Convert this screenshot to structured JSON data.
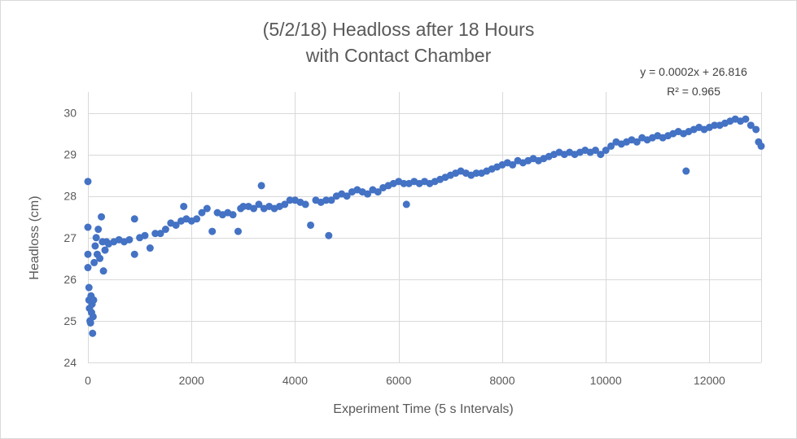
{
  "chart_data": {
    "type": "scatter",
    "title_line1": "(5/2/18) Headloss after 18 Hours",
    "title_line2": "with Contact Chamber",
    "xlabel": "Experiment Time (5 s Intervals)",
    "ylabel": "Headloss (cm)",
    "xlim": [
      0,
      13000
    ],
    "ylim": [
      24,
      30.5
    ],
    "x_ticks": [
      0,
      2000,
      4000,
      6000,
      8000,
      10000,
      12000
    ],
    "x_tick_labels": [
      "0",
      "2000",
      "4000",
      "6000",
      "8000",
      "10000",
      "12000"
    ],
    "y_ticks": [
      24,
      25,
      26,
      27,
      28,
      29,
      30
    ],
    "y_tick_labels": [
      "24",
      "25",
      "26",
      "27",
      "28",
      "29",
      "30"
    ],
    "grid": true,
    "marker_color": "#4472C4",
    "trendline_equation": "y = 0.0002x + 26.816",
    "trendline_r2": "R² = 0.965",
    "series": [
      {
        "points": [
          [
            0,
            28.35
          ],
          [
            0,
            27.25
          ],
          [
            0,
            26.6
          ],
          [
            0,
            26.28
          ],
          [
            20,
            25.8
          ],
          [
            20,
            25.5
          ],
          [
            30,
            25.3
          ],
          [
            40,
            25.0
          ],
          [
            50,
            24.95
          ],
          [
            60,
            25.6
          ],
          [
            70,
            25.2
          ],
          [
            80,
            25.4
          ],
          [
            90,
            24.7
          ],
          [
            100,
            25.1
          ],
          [
            110,
            25.5
          ],
          [
            120,
            26.4
          ],
          [
            140,
            26.8
          ],
          [
            160,
            27.0
          ],
          [
            180,
            26.6
          ],
          [
            200,
            27.2
          ],
          [
            230,
            26.5
          ],
          [
            260,
            27.5
          ],
          [
            280,
            26.9
          ],
          [
            300,
            26.2
          ],
          [
            330,
            26.7
          ],
          [
            360,
            26.9
          ],
          [
            400,
            26.85
          ],
          [
            500,
            26.9
          ],
          [
            600,
            26.95
          ],
          [
            700,
            26.9
          ],
          [
            800,
            26.95
          ],
          [
            900,
            27.45
          ],
          [
            900,
            26.6
          ],
          [
            1000,
            27.0
          ],
          [
            1100,
            27.05
          ],
          [
            1200,
            26.75
          ],
          [
            1300,
            27.1
          ],
          [
            1400,
            27.1
          ],
          [
            1500,
            27.2
          ],
          [
            1600,
            27.35
          ],
          [
            1700,
            27.3
          ],
          [
            1800,
            27.4
          ],
          [
            1850,
            27.75
          ],
          [
            1900,
            27.45
          ],
          [
            2000,
            27.4
          ],
          [
            2100,
            27.45
          ],
          [
            2200,
            27.6
          ],
          [
            2300,
            27.7
          ],
          [
            2400,
            27.15
          ],
          [
            2500,
            27.6
          ],
          [
            2600,
            27.55
          ],
          [
            2700,
            27.6
          ],
          [
            2800,
            27.55
          ],
          [
            2900,
            27.15
          ],
          [
            2950,
            27.7
          ],
          [
            3000,
            27.75
          ],
          [
            3100,
            27.75
          ],
          [
            3200,
            27.7
          ],
          [
            3300,
            27.8
          ],
          [
            3350,
            28.25
          ],
          [
            3400,
            27.7
          ],
          [
            3500,
            27.75
          ],
          [
            3600,
            27.7
          ],
          [
            3700,
            27.75
          ],
          [
            3800,
            27.8
          ],
          [
            3900,
            27.9
          ],
          [
            4000,
            27.9
          ],
          [
            4100,
            27.85
          ],
          [
            4200,
            27.8
          ],
          [
            4300,
            27.3
          ],
          [
            4400,
            27.9
          ],
          [
            4500,
            27.85
          ],
          [
            4600,
            27.9
          ],
          [
            4650,
            27.05
          ],
          [
            4700,
            27.9
          ],
          [
            4800,
            28.0
          ],
          [
            4900,
            28.05
          ],
          [
            5000,
            28.0
          ],
          [
            5100,
            28.1
          ],
          [
            5200,
            28.15
          ],
          [
            5300,
            28.1
          ],
          [
            5400,
            28.05
          ],
          [
            5500,
            28.15
          ],
          [
            5600,
            28.1
          ],
          [
            5700,
            28.2
          ],
          [
            5800,
            28.25
          ],
          [
            5900,
            28.3
          ],
          [
            6000,
            28.35
          ],
          [
            6100,
            28.3
          ],
          [
            6150,
            27.8
          ],
          [
            6200,
            28.3
          ],
          [
            6300,
            28.35
          ],
          [
            6400,
            28.3
          ],
          [
            6500,
            28.35
          ],
          [
            6600,
            28.3
          ],
          [
            6700,
            28.35
          ],
          [
            6800,
            28.4
          ],
          [
            6900,
            28.45
          ],
          [
            7000,
            28.5
          ],
          [
            7100,
            28.55
          ],
          [
            7200,
            28.6
          ],
          [
            7300,
            28.55
          ],
          [
            7400,
            28.5
          ],
          [
            7500,
            28.55
          ],
          [
            7600,
            28.55
          ],
          [
            7700,
            28.6
          ],
          [
            7800,
            28.65
          ],
          [
            7900,
            28.7
          ],
          [
            8000,
            28.75
          ],
          [
            8100,
            28.8
          ],
          [
            8200,
            28.75
          ],
          [
            8300,
            28.85
          ],
          [
            8400,
            28.8
          ],
          [
            8500,
            28.85
          ],
          [
            8600,
            28.9
          ],
          [
            8700,
            28.85
          ],
          [
            8800,
            28.9
          ],
          [
            8900,
            28.95
          ],
          [
            9000,
            29.0
          ],
          [
            9100,
            29.05
          ],
          [
            9200,
            29.0
          ],
          [
            9300,
            29.05
          ],
          [
            9400,
            29.0
          ],
          [
            9500,
            29.05
          ],
          [
            9600,
            29.1
          ],
          [
            9700,
            29.05
          ],
          [
            9800,
            29.1
          ],
          [
            9900,
            29.0
          ],
          [
            10000,
            29.1
          ],
          [
            10100,
            29.2
          ],
          [
            10200,
            29.3
          ],
          [
            10300,
            29.25
          ],
          [
            10400,
            29.3
          ],
          [
            10500,
            29.35
          ],
          [
            10600,
            29.3
          ],
          [
            10700,
            29.4
          ],
          [
            10800,
            29.35
          ],
          [
            10900,
            29.4
          ],
          [
            11000,
            29.45
          ],
          [
            11100,
            29.4
          ],
          [
            11200,
            29.45
          ],
          [
            11300,
            29.5
          ],
          [
            11400,
            29.55
          ],
          [
            11500,
            29.5
          ],
          [
            11550,
            28.6
          ],
          [
            11600,
            29.55
          ],
          [
            11700,
            29.6
          ],
          [
            11800,
            29.65
          ],
          [
            11900,
            29.6
          ],
          [
            12000,
            29.65
          ],
          [
            12100,
            29.7
          ],
          [
            12200,
            29.7
          ],
          [
            12300,
            29.75
          ],
          [
            12400,
            29.8
          ],
          [
            12500,
            29.85
          ],
          [
            12600,
            29.8
          ],
          [
            12700,
            29.85
          ],
          [
            12800,
            29.7
          ],
          [
            12900,
            29.6
          ],
          [
            12950,
            29.3
          ],
          [
            13000,
            29.2
          ]
        ]
      }
    ]
  }
}
